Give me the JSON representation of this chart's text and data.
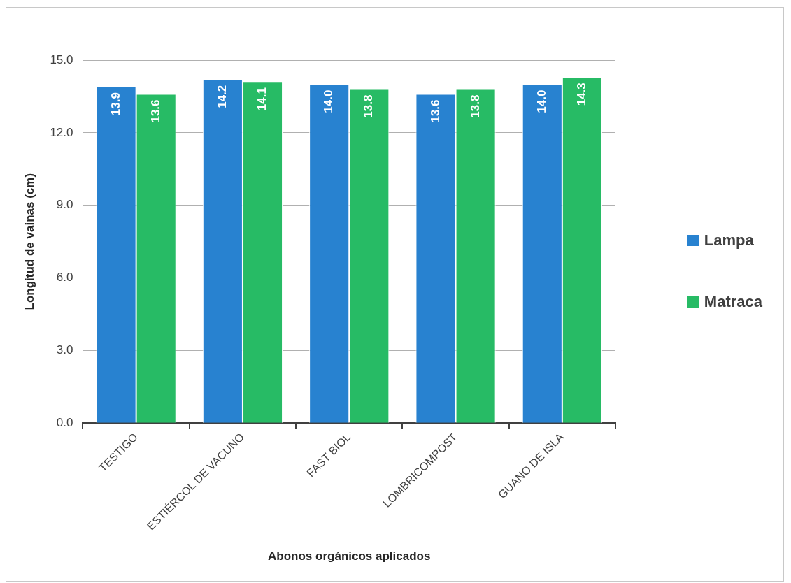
{
  "chart_data": {
    "type": "bar",
    "xlabel": "Abonos orgánicos aplicados",
    "ylabel": "Longitud de vainas (cm)",
    "categories": [
      "TESTIGO",
      "ESTIÉRCOL DE VACUNO",
      "FAST BIOL",
      "LOMBRICOMPOST",
      "GUANO DE ISLA"
    ],
    "series": [
      {
        "name": "Lampa",
        "color": "#2882d0",
        "values": [
          13.9,
          14.2,
          14.0,
          13.6,
          14.0
        ],
        "value_labels": [
          "13.9",
          "14.2",
          "14.0",
          "13.6",
          "14.0"
        ]
      },
      {
        "name": "Matraca",
        "color": "#27bb65",
        "values": [
          13.6,
          14.1,
          13.8,
          13.8,
          14.3
        ],
        "value_labels": [
          "13.6",
          "14.1",
          "13.8",
          "13.8",
          "14.3"
        ]
      }
    ],
    "ylim": [
      0,
      15
    ],
    "yticks": [
      {
        "value": 0,
        "label": "0.0"
      },
      {
        "value": 3,
        "label": "3.0"
      },
      {
        "value": 6,
        "label": "6.0"
      },
      {
        "value": 9,
        "label": "9.0"
      },
      {
        "value": 12,
        "label": "12.0"
      },
      {
        "value": 15,
        "label": "15.0"
      }
    ],
    "grid": "y",
    "legend": "right"
  }
}
